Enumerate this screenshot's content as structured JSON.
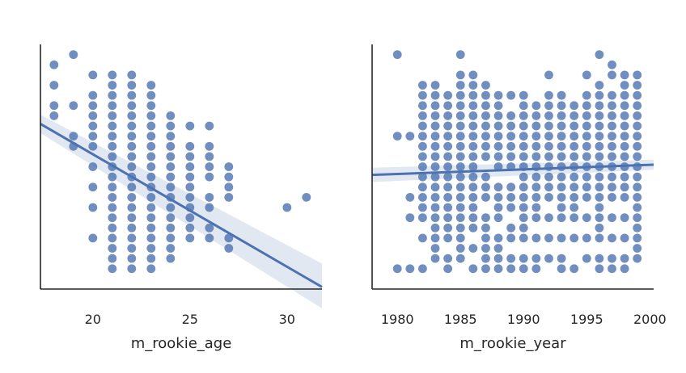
{
  "figure": {
    "background_color": "#ffffff",
    "point_color": "#4c72b0",
    "fit_line_color": "#4c72b0",
    "confidence_band_color": "#4c72b0"
  },
  "chart_data": [
    {
      "type": "scatter",
      "title": "",
      "xlabel": "m_rookie_age",
      "ylabel": "",
      "xlim": [
        17.3,
        31.8
      ],
      "ylim": [
        -0.5,
        11.5
      ],
      "xticks": [
        20,
        25,
        30
      ],
      "xtick_labels": [
        "20",
        "25",
        "30"
      ],
      "yticks": [],
      "grid": false,
      "legend": "none",
      "points": {
        "x": [
          18,
          18,
          18,
          18,
          19,
          19,
          19,
          19,
          20,
          20,
          20,
          20,
          20,
          20,
          20,
          20,
          20,
          20,
          20,
          21,
          21,
          21,
          21,
          21,
          21,
          21,
          21,
          21,
          21,
          21,
          21,
          21,
          21,
          21,
          21,
          21,
          21,
          21,
          21,
          22,
          22,
          22,
          22,
          22,
          22,
          22,
          22,
          22,
          22,
          22,
          22,
          22,
          22,
          22,
          22,
          22,
          22,
          22,
          22,
          23,
          23,
          23,
          23,
          23,
          23,
          23,
          23,
          23,
          23,
          23,
          23,
          23,
          23,
          23,
          23,
          23,
          23,
          23,
          24,
          24,
          24,
          24,
          24,
          24,
          24,
          24,
          24,
          24,
          24,
          24,
          24,
          24,
          24,
          25,
          25,
          25,
          25,
          25,
          25,
          25,
          25,
          25,
          25,
          25,
          26,
          26,
          26,
          26,
          26,
          26,
          26,
          26,
          26,
          27,
          27,
          27,
          27,
          27,
          27,
          30,
          31
        ],
        "y": [
          10.5,
          9.5,
          8.5,
          8.0,
          11.0,
          8.5,
          7.0,
          6.5,
          10.0,
          9.0,
          8.5,
          8.0,
          7.5,
          7.0,
          6.5,
          5.5,
          4.5,
          3.5,
          2.0,
          10.0,
          9.5,
          9.0,
          8.5,
          8.0,
          7.5,
          7.0,
          6.5,
          6.0,
          5.5,
          5.0,
          4.5,
          4.0,
          3.5,
          3.0,
          2.5,
          2.0,
          1.5,
          1.0,
          0.5,
          10.0,
          9.5,
          9.0,
          8.5,
          8.0,
          7.5,
          7.0,
          6.5,
          6.0,
          5.5,
          5.0,
          4.5,
          4.0,
          3.5,
          3.0,
          2.5,
          2.0,
          1.5,
          1.0,
          0.5,
          9.5,
          9.0,
          8.5,
          8.0,
          7.5,
          7.0,
          6.5,
          6.0,
          5.5,
          5.0,
          4.5,
          4.0,
          3.5,
          3.0,
          2.5,
          2.0,
          1.5,
          1.0,
          0.5,
          8.0,
          7.5,
          7.0,
          6.5,
          6.0,
          5.5,
          5.0,
          4.5,
          4.0,
          3.5,
          3.0,
          2.5,
          2.0,
          1.5,
          1.0,
          7.5,
          6.5,
          6.0,
          5.5,
          5.0,
          4.5,
          4.0,
          3.5,
          3.0,
          2.5,
          2.0,
          7.5,
          6.5,
          6.0,
          5.5,
          5.0,
          4.0,
          3.5,
          2.5,
          2.0,
          5.5,
          5.0,
          4.5,
          4.0,
          2.0,
          1.5,
          3.5,
          4.0
        ]
      },
      "regression": {
        "x": [
          17.3,
          31.8
        ],
        "y": [
          7.6,
          -0.4
        ],
        "ci_upper": [
          8.05,
          0.75
        ],
        "ci_lower": [
          7.15,
          -1.45
        ]
      }
    },
    {
      "type": "scatter",
      "title": "",
      "xlabel": "m_rookie_year",
      "ylabel": "",
      "xlim": [
        1978,
        2000.3
      ],
      "ylim": [
        -0.5,
        11.5
      ],
      "xticks": [
        1980,
        1985,
        1990,
        1995,
        2000
      ],
      "xtick_labels": [
        "1980",
        "1985",
        "1990",
        "1995",
        "2000"
      ],
      "yticks": [],
      "grid": false,
      "legend": "none",
      "points": {
        "x": [
          1980,
          1980,
          1980,
          1981,
          1981,
          1981,
          1981,
          1982,
          1982,
          1982,
          1982,
          1982,
          1982,
          1982,
          1982,
          1982,
          1982,
          1982,
          1982,
          1982,
          1982,
          1982,
          1982,
          1983,
          1983,
          1983,
          1983,
          1983,
          1983,
          1983,
          1983,
          1983,
          1983,
          1983,
          1983,
          1983,
          1983,
          1983,
          1983,
          1983,
          1983,
          1984,
          1984,
          1984,
          1984,
          1984,
          1984,
          1984,
          1984,
          1984,
          1984,
          1984,
          1984,
          1984,
          1984,
          1984,
          1984,
          1984,
          1985,
          1985,
          1985,
          1985,
          1985,
          1985,
          1985,
          1985,
          1985,
          1985,
          1985,
          1985,
          1985,
          1985,
          1985,
          1985,
          1985,
          1985,
          1985,
          1985,
          1986,
          1986,
          1986,
          1986,
          1986,
          1986,
          1986,
          1986,
          1986,
          1986,
          1986,
          1986,
          1986,
          1986,
          1986,
          1986,
          1986,
          1986,
          1987,
          1987,
          1987,
          1987,
          1987,
          1987,
          1987,
          1987,
          1987,
          1987,
          1987,
          1987,
          1987,
          1987,
          1987,
          1987,
          1987,
          1988,
          1988,
          1988,
          1988,
          1988,
          1988,
          1988,
          1988,
          1988,
          1988,
          1988,
          1988,
          1988,
          1988,
          1988,
          1988,
          1989,
          1989,
          1989,
          1989,
          1989,
          1989,
          1989,
          1989,
          1989,
          1989,
          1989,
          1989,
          1989,
          1989,
          1990,
          1990,
          1990,
          1990,
          1990,
          1990,
          1990,
          1990,
          1990,
          1990,
          1990,
          1990,
          1990,
          1990,
          1990,
          1990,
          1990,
          1991,
          1991,
          1991,
          1991,
          1991,
          1991,
          1991,
          1991,
          1991,
          1991,
          1991,
          1991,
          1991,
          1991,
          1991,
          1992,
          1992,
          1992,
          1992,
          1992,
          1992,
          1992,
          1992,
          1992,
          1992,
          1992,
          1992,
          1992,
          1992,
          1992,
          1993,
          1993,
          1993,
          1993,
          1993,
          1993,
          1993,
          1993,
          1993,
          1993,
          1993,
          1993,
          1993,
          1993,
          1993,
          1993,
          1994,
          1994,
          1994,
          1994,
          1994,
          1994,
          1994,
          1994,
          1994,
          1994,
          1994,
          1994,
          1994,
          1994,
          1995,
          1995,
          1995,
          1995,
          1995,
          1995,
          1995,
          1995,
          1995,
          1995,
          1995,
          1995,
          1995,
          1995,
          1995,
          1996,
          1996,
          1996,
          1996,
          1996,
          1996,
          1996,
          1996,
          1996,
          1996,
          1996,
          1996,
          1996,
          1996,
          1996,
          1996,
          1996,
          1996,
          1996,
          1997,
          1997,
          1997,
          1997,
          1997,
          1997,
          1997,
          1997,
          1997,
          1997,
          1997,
          1997,
          1997,
          1997,
          1997,
          1997,
          1997,
          1998,
          1998,
          1998,
          1998,
          1998,
          1998,
          1998,
          1998,
          1998,
          1998,
          1998,
          1998,
          1998,
          1998,
          1998,
          1998,
          1998,
          1999,
          1999,
          1999,
          1999,
          1999,
          1999,
          1999,
          1999,
          1999,
          1999,
          1999,
          1999,
          1999,
          1999,
          1999,
          1999,
          1999,
          1999,
          1999
        ],
        "y": [
          11.0,
          7.0,
          0.5,
          7.0,
          3.0,
          0.5,
          4.0,
          9.5,
          9.0,
          8.5,
          8.0,
          7.5,
          7.0,
          6.5,
          6.0,
          5.5,
          5.0,
          4.5,
          4.0,
          3.5,
          3.0,
          2.0,
          0.5,
          9.5,
          9.0,
          8.5,
          8.0,
          7.5,
          7.0,
          6.5,
          6.0,
          5.5,
          5.0,
          4.5,
          4.0,
          3.5,
          3.0,
          2.5,
          2.0,
          1.5,
          1.0,
          9.0,
          8.5,
          8.0,
          7.5,
          7.0,
          6.5,
          6.0,
          5.5,
          5.0,
          4.5,
          4.0,
          3.5,
          3.0,
          2.5,
          2.0,
          1.0,
          0.5,
          11.0,
          10.0,
          9.5,
          9.0,
          8.5,
          8.0,
          7.5,
          7.0,
          6.5,
          6.0,
          5.5,
          5.0,
          4.5,
          4.0,
          3.5,
          3.0,
          2.5,
          2.0,
          1.5,
          1.0,
          10.0,
          9.5,
          9.0,
          8.5,
          8.0,
          7.5,
          7.0,
          6.5,
          6.0,
          5.5,
          5.0,
          4.5,
          4.0,
          3.5,
          3.0,
          2.5,
          1.5,
          0.5,
          9.5,
          9.0,
          8.5,
          8.0,
          7.5,
          7.0,
          6.5,
          6.0,
          5.0,
          4.5,
          4.0,
          3.0,
          2.5,
          2.0,
          1.5,
          1.0,
          0.5,
          9.0,
          8.5,
          8.0,
          7.5,
          7.0,
          6.5,
          6.0,
          5.5,
          4.5,
          4.0,
          3.5,
          3.0,
          2.0,
          1.5,
          1.0,
          0.5,
          9.0,
          8.0,
          7.5,
          7.0,
          6.5,
          6.0,
          5.5,
          4.5,
          4.0,
          3.5,
          2.5,
          2.0,
          1.0,
          0.5,
          9.0,
          8.5,
          8.0,
          7.5,
          7.0,
          6.5,
          6.0,
          5.5,
          5.0,
          4.5,
          4.0,
          3.5,
          3.0,
          2.5,
          2.0,
          1.0,
          0.5,
          8.5,
          8.0,
          7.5,
          7.0,
          6.5,
          6.0,
          5.5,
          5.0,
          4.5,
          4.0,
          3.5,
          3.0,
          2.0,
          1.0,
          0.5,
          10.0,
          9.0,
          8.5,
          8.0,
          7.5,
          7.0,
          6.5,
          6.0,
          5.5,
          5.0,
          4.5,
          4.0,
          3.0,
          2.0,
          1.0,
          9.0,
          8.5,
          8.0,
          7.5,
          7.0,
          6.5,
          6.0,
          5.5,
          5.0,
          4.5,
          4.0,
          3.5,
          3.0,
          2.0,
          1.0,
          0.5,
          8.5,
          8.0,
          7.5,
          7.0,
          6.5,
          6.0,
          5.5,
          5.0,
          4.5,
          4.0,
          3.5,
          3.0,
          2.0,
          0.5,
          10.0,
          9.0,
          8.5,
          8.0,
          7.5,
          7.0,
          6.5,
          6.0,
          5.5,
          5.0,
          4.5,
          4.0,
          3.0,
          2.0,
          1.0,
          11.0,
          9.5,
          9.0,
          8.5,
          8.0,
          7.5,
          7.0,
          6.5,
          6.0,
          5.5,
          5.0,
          4.5,
          4.0,
          3.5,
          3.0,
          2.5,
          2.0,
          1.0,
          0.5,
          10.5,
          10.0,
          9.0,
          8.5,
          8.0,
          7.5,
          7.0,
          6.5,
          6.0,
          5.5,
          5.0,
          4.5,
          4.0,
          3.0,
          2.0,
          1.0,
          0.5,
          10.0,
          9.5,
          9.0,
          8.5,
          8.0,
          7.5,
          7.0,
          6.5,
          6.0,
          5.5,
          5.0,
          4.5,
          4.0,
          3.0,
          2.0,
          1.0,
          0.5,
          10.0,
          9.5,
          9.0,
          8.5,
          8.0,
          7.5,
          7.0,
          6.5,
          6.0,
          5.5,
          5.0,
          4.5,
          4.0,
          3.5,
          3.0,
          2.5,
          2.0,
          1.5,
          1.0
        ]
      },
      "regression": {
        "x": [
          1978,
          2000.3
        ],
        "y": [
          5.1,
          5.6
        ],
        "ci_upper": [
          5.45,
          5.85
        ],
        "ci_lower": [
          4.75,
          5.35
        ]
      }
    }
  ]
}
